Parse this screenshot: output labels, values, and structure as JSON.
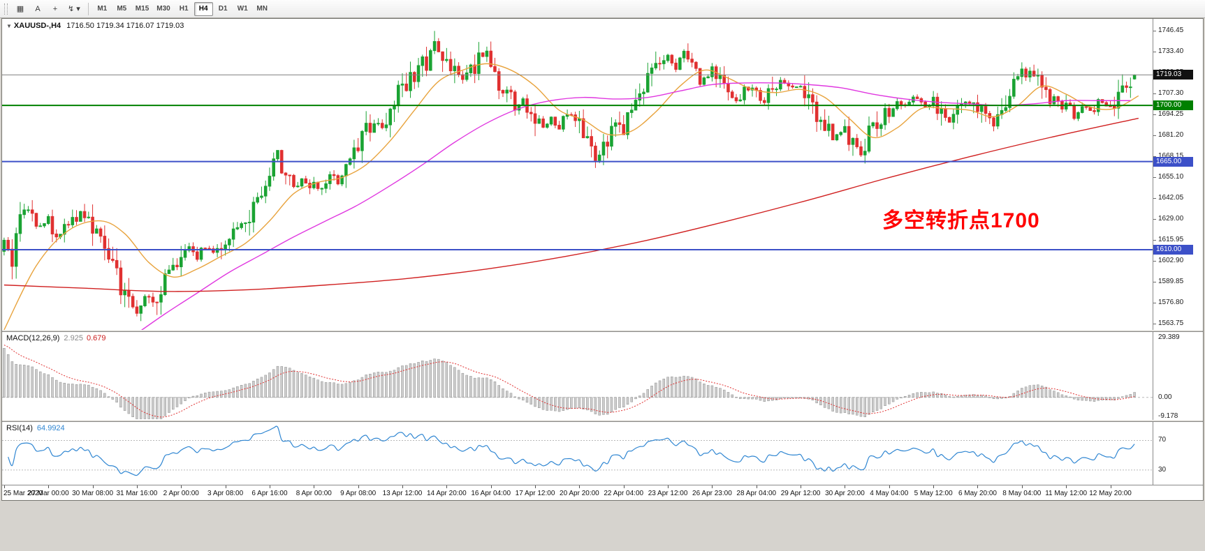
{
  "toolbar": {
    "tool_icons": [
      {
        "name": "chart-windows-icon",
        "glyph": "▦"
      },
      {
        "name": "cursor-tool-button",
        "glyph": "A"
      },
      {
        "name": "crosshair-tool-button",
        "glyph": "+"
      },
      {
        "name": "objects-dropdown",
        "glyph": "↯ ▾"
      }
    ],
    "timeframes": [
      "M1",
      "M5",
      "M15",
      "M30",
      "H1",
      "H4",
      "D1",
      "W1",
      "MN"
    ],
    "active_timeframe": "H4"
  },
  "chart_data": {
    "type": "candlestick",
    "symbol": "XAUUSD-",
    "period": "H4",
    "title": "XAUUSD-,H4",
    "ohlc_text": "1716.50 1719.34 1716.07 1719.03",
    "ohlc": {
      "open": "1716.50",
      "high": "1719.34",
      "low": "1716.07",
      "close": "1719.03"
    },
    "up_color": "#1aa333",
    "down_color": "#e03030",
    "slots": 286,
    "candle_count": 282,
    "candles_per_label": 11,
    "y_ticks": [
      1746.45,
      1733.4,
      1720.35,
      1707.3,
      1694.25,
      1681.2,
      1668.15,
      1655.1,
      1642.05,
      1629.0,
      1615.95,
      1602.9,
      1589.85,
      1576.8,
      1563.75
    ],
    "price_tags": [
      {
        "label": "1719.03",
        "price": 1719.03,
        "bg": "#111111"
      },
      {
        "label": "1700.00",
        "price": 1700.0,
        "bg": "#008000"
      },
      {
        "label": "1665.00",
        "price": 1665.0,
        "bg": "#3c50c8"
      },
      {
        "label": "1610.00",
        "price": 1610.0,
        "bg": "#3c50c8"
      }
    ],
    "hlines": [
      {
        "price": 1719.03,
        "color": "#808080",
        "width": 1
      },
      {
        "price": 1700.0,
        "color": "#008000",
        "width": 2
      },
      {
        "price": 1665.0,
        "color": "#3c50c8",
        "width": 2
      },
      {
        "price": 1610.0,
        "color": "#3c50c8",
        "width": 2
      }
    ],
    "x_labels": [
      "25 Mar 2020",
      "27 Mar 00:00",
      "30 Mar 08:00",
      "31 Mar 16:00",
      "2 Apr 00:00",
      "3 Apr 08:00",
      "6 Apr 16:00",
      "8 Apr 00:00",
      "9 Apr 08:00",
      "13 Apr 12:00",
      "14 Apr 20:00",
      "16 Apr 04:00",
      "17 Apr 12:00",
      "20 Apr 20:00",
      "22 Apr 04:00",
      "23 Apr 12:00",
      "26 Apr 23:00",
      "28 Apr 04:00",
      "29 Apr 12:00",
      "30 Apr 20:00",
      "4 May 04:00",
      "5 May 12:00",
      "6 May 20:00",
      "8 May 04:00",
      "11 May 12:00",
      "12 May 20:00"
    ],
    "price_path": [
      [
        0,
        1612
      ],
      [
        2,
        1605
      ],
      [
        5,
        1638
      ],
      [
        8,
        1625
      ],
      [
        11,
        1628
      ],
      [
        14,
        1618
      ],
      [
        17,
        1630
      ],
      [
        20,
        1633
      ],
      [
        22,
        1622
      ],
      [
        25,
        1615
      ],
      [
        27,
        1600
      ],
      [
        29,
        1588
      ],
      [
        31,
        1577
      ],
      [
        33,
        1572
      ],
      [
        35,
        1582
      ],
      [
        37,
        1575
      ],
      [
        39,
        1588
      ],
      [
        41,
        1596
      ],
      [
        44,
        1604
      ],
      [
        46,
        1610
      ],
      [
        48,
        1606
      ],
      [
        50,
        1613
      ],
      [
        52,
        1608
      ],
      [
        55,
        1616
      ],
      [
        58,
        1621
      ],
      [
        60,
        1626
      ],
      [
        62,
        1634
      ],
      [
        64,
        1648
      ],
      [
        66,
        1662
      ],
      [
        68,
        1670
      ],
      [
        70,
        1655
      ],
      [
        72,
        1648
      ],
      [
        74,
        1655
      ],
      [
        77,
        1650
      ],
      [
        79,
        1647
      ],
      [
        81,
        1656
      ],
      [
        83,
        1652
      ],
      [
        85,
        1660
      ],
      [
        88,
        1672
      ],
      [
        90,
        1684
      ],
      [
        92,
        1690
      ],
      [
        94,
        1686
      ],
      [
        96,
        1695
      ],
      [
        99,
        1712
      ],
      [
        101,
        1718
      ],
      [
        103,
        1722
      ],
      [
        105,
        1728
      ],
      [
        107,
        1740
      ],
      [
        108,
        1733
      ],
      [
        110,
        1728
      ],
      [
        112,
        1720
      ],
      [
        114,
        1715
      ],
      [
        116,
        1722
      ],
      [
        118,
        1728
      ],
      [
        120,
        1735
      ],
      [
        121,
        1726
      ],
      [
        123,
        1714
      ],
      [
        125,
        1708
      ],
      [
        127,
        1698
      ],
      [
        129,
        1703
      ],
      [
        132,
        1692
      ],
      [
        134,
        1686
      ],
      [
        136,
        1692
      ],
      [
        138,
        1686
      ],
      [
        140,
        1695
      ],
      [
        143,
        1688
      ],
      [
        145,
        1678
      ],
      [
        147,
        1665
      ],
      [
        149,
        1672
      ],
      [
        151,
        1682
      ],
      [
        154,
        1688
      ],
      [
        156,
        1698
      ],
      [
        158,
        1708
      ],
      [
        160,
        1716
      ],
      [
        162,
        1722
      ],
      [
        165,
        1730
      ],
      [
        167,
        1724
      ],
      [
        169,
        1733
      ],
      [
        171,
        1722
      ],
      [
        173,
        1715
      ],
      [
        176,
        1722
      ],
      [
        178,
        1714
      ],
      [
        180,
        1708
      ],
      [
        182,
        1702
      ],
      [
        184,
        1710
      ],
      [
        187,
        1708
      ],
      [
        189,
        1702
      ],
      [
        191,
        1712
      ],
      [
        193,
        1715
      ],
      [
        195,
        1710
      ],
      [
        198,
        1712
      ],
      [
        200,
        1705
      ],
      [
        202,
        1695
      ],
      [
        204,
        1688
      ],
      [
        206,
        1680
      ],
      [
        209,
        1684
      ],
      [
        211,
        1676
      ],
      [
        213,
        1670
      ],
      [
        215,
        1682
      ],
      [
        217,
        1690
      ],
      [
        220,
        1696
      ],
      [
        222,
        1702
      ],
      [
        224,
        1698
      ],
      [
        226,
        1705
      ],
      [
        228,
        1700
      ],
      [
        231,
        1702
      ],
      [
        233,
        1696
      ],
      [
        235,
        1690
      ],
      [
        237,
        1698
      ],
      [
        239,
        1704
      ],
      [
        242,
        1700
      ],
      [
        244,
        1692
      ],
      [
        246,
        1686
      ],
      [
        248,
        1696
      ],
      [
        250,
        1710
      ],
      [
        253,
        1718
      ],
      [
        255,
        1722
      ],
      [
        257,
        1714
      ],
      [
        259,
        1708
      ],
      [
        261,
        1702
      ],
      [
        264,
        1700
      ],
      [
        266,
        1694
      ],
      [
        268,
        1698
      ],
      [
        270,
        1696
      ],
      [
        272,
        1702
      ],
      [
        274,
        1700
      ],
      [
        275,
        1698
      ],
      [
        277,
        1705
      ],
      [
        279,
        1712
      ],
      [
        281,
        1719.03
      ]
    ],
    "moving_averages": [
      {
        "name": "fast",
        "color": "#e8a33d",
        "points": [
          [
            0,
            1560
          ],
          [
            8,
            1600
          ],
          [
            16,
            1622
          ],
          [
            24,
            1628
          ],
          [
            30,
            1620
          ],
          [
            36,
            1602
          ],
          [
            42,
            1593
          ],
          [
            48,
            1598
          ],
          [
            54,
            1606
          ],
          [
            60,
            1614
          ],
          [
            66,
            1628
          ],
          [
            72,
            1645
          ],
          [
            78,
            1652
          ],
          [
            84,
            1655
          ],
          [
            90,
            1663
          ],
          [
            96,
            1678
          ],
          [
            102,
            1697
          ],
          [
            108,
            1715
          ],
          [
            114,
            1722
          ],
          [
            120,
            1726
          ],
          [
            126,
            1722
          ],
          [
            132,
            1712
          ],
          [
            138,
            1697
          ],
          [
            144,
            1691
          ],
          [
            150,
            1682
          ],
          [
            156,
            1684
          ],
          [
            162,
            1696
          ],
          [
            168,
            1712
          ],
          [
            174,
            1722
          ],
          [
            180,
            1717
          ],
          [
            186,
            1710
          ],
          [
            192,
            1708
          ],
          [
            198,
            1710
          ],
          [
            204,
            1705
          ],
          [
            210,
            1692
          ],
          [
            216,
            1680
          ],
          [
            222,
            1686
          ],
          [
            228,
            1698
          ],
          [
            234,
            1698
          ],
          [
            240,
            1697
          ],
          [
            246,
            1693
          ],
          [
            252,
            1700
          ],
          [
            258,
            1712
          ],
          [
            264,
            1707
          ],
          [
            270,
            1699
          ],
          [
            276,
            1698
          ],
          [
            282,
            1706
          ]
        ]
      },
      {
        "name": "mid",
        "color": "#e038e0",
        "points": [
          [
            24,
            1542
          ],
          [
            32,
            1556
          ],
          [
            40,
            1570
          ],
          [
            48,
            1583
          ],
          [
            56,
            1596
          ],
          [
            64,
            1607
          ],
          [
            72,
            1618
          ],
          [
            80,
            1628
          ],
          [
            88,
            1638
          ],
          [
            96,
            1650
          ],
          [
            104,
            1663
          ],
          [
            112,
            1677
          ],
          [
            120,
            1689
          ],
          [
            128,
            1698
          ],
          [
            136,
            1703
          ],
          [
            144,
            1705
          ],
          [
            152,
            1704
          ],
          [
            160,
            1705
          ],
          [
            168,
            1709
          ],
          [
            176,
            1713
          ],
          [
            184,
            1714
          ],
          [
            192,
            1714
          ],
          [
            200,
            1713
          ],
          [
            208,
            1711
          ],
          [
            216,
            1707
          ],
          [
            224,
            1704
          ],
          [
            232,
            1702
          ],
          [
            240,
            1701
          ],
          [
            248,
            1700
          ],
          [
            256,
            1701
          ],
          [
            264,
            1703
          ],
          [
            272,
            1703
          ],
          [
            280,
            1703
          ]
        ]
      },
      {
        "name": "slow",
        "color": "#d02020",
        "points": [
          [
            0,
            1588
          ],
          [
            20,
            1586
          ],
          [
            40,
            1584
          ],
          [
            60,
            1585
          ],
          [
            80,
            1588
          ],
          [
            100,
            1592
          ],
          [
            120,
            1598
          ],
          [
            140,
            1606
          ],
          [
            160,
            1616
          ],
          [
            180,
            1628
          ],
          [
            200,
            1641
          ],
          [
            220,
            1655
          ],
          [
            240,
            1668
          ],
          [
            260,
            1680
          ],
          [
            282,
            1692
          ]
        ]
      }
    ],
    "annotation": {
      "text": "多空转折点1700",
      "color": "#ff0000"
    },
    "macd": {
      "label": "MACD(12,26,9)",
      "main_value": "2.925",
      "signal_value": "0.679",
      "histogram_color": "#cccccc",
      "signal_color": "#e03030",
      "range": [
        -11,
        32
      ],
      "axis_ticks": [
        {
          "label": "29.389",
          "value": 29.389
        },
        {
          "label": "0.00",
          "value": 0
        },
        {
          "label": "-9.178",
          "value": -9.178
        }
      ]
    },
    "rsi": {
      "label": "RSI(14)",
      "value": "64.9924",
      "color": "#2f86d2",
      "levels": [
        70,
        30
      ],
      "range": [
        10,
        95
      ]
    }
  }
}
